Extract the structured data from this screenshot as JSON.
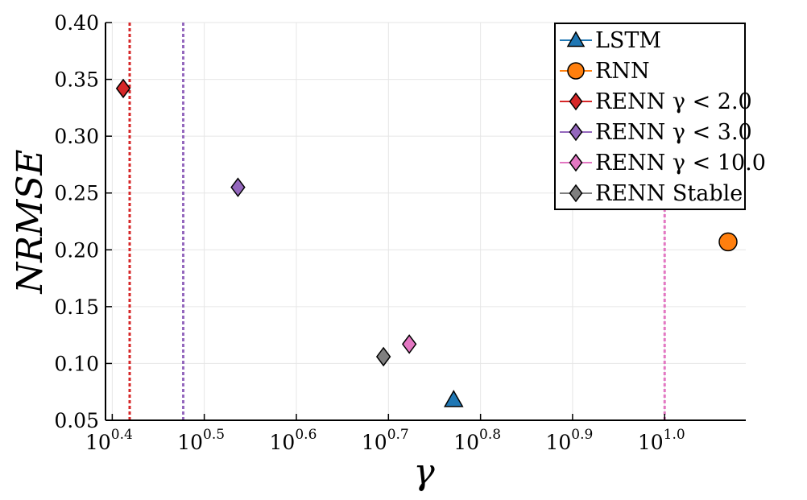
{
  "chart_data": {
    "type": "scatter",
    "title": "",
    "xlabel": "γ",
    "ylabel": "NRMSE",
    "xscale": "log10",
    "xlim": [
      2.47,
      12.25
    ],
    "ylim": [
      0.05,
      0.4
    ],
    "grid": true,
    "legend_position": "top-right",
    "xticks": [
      {
        "value": 2.512,
        "base": "10",
        "exp": "0.4"
      },
      {
        "value": 3.162,
        "base": "10",
        "exp": "0.5"
      },
      {
        "value": 3.981,
        "base": "10",
        "exp": "0.6"
      },
      {
        "value": 5.012,
        "base": "10",
        "exp": "0.7"
      },
      {
        "value": 6.31,
        "base": "10",
        "exp": "0.8"
      },
      {
        "value": 7.943,
        "base": "10",
        "exp": "0.9"
      },
      {
        "value": 10.0,
        "base": "10",
        "exp": "1.0"
      }
    ],
    "yticks": [
      "0.05",
      "0.10",
      "0.15",
      "0.20",
      "0.25",
      "0.30",
      "0.35",
      "0.40"
    ],
    "series": [
      {
        "name": "LSTM",
        "marker": "triangle",
        "color": "#1f77b4",
        "points": [
          {
            "x": 5.9,
            "y": 0.068
          }
        ]
      },
      {
        "name": "RNN",
        "marker": "circle",
        "color": "#ff7f0e",
        "points": [
          {
            "x": 11.9,
            "y": 0.207
          }
        ]
      },
      {
        "name": "RENN γ < 2.0",
        "marker": "diamond",
        "color": "#d62728",
        "points": [
          {
            "x": 2.47,
            "y": 0.342
          }
        ]
      },
      {
        "name": "RENN γ < 3.0",
        "marker": "diamond",
        "color": "#9467bd",
        "points": [
          {
            "x": 3.44,
            "y": 0.255
          }
        ]
      },
      {
        "name": "RENN γ < 10.0",
        "marker": "diamond",
        "color": "#e377c2",
        "points": [
          {
            "x": 5.28,
            "y": 0.117
          }
        ]
      },
      {
        "name": "RENN Stable",
        "marker": "diamond",
        "color": "#7f7f7f",
        "points": [
          {
            "x": 4.95,
            "y": 0.106
          }
        ]
      }
    ],
    "vlines": [
      {
        "x": 2.0,
        "color": "#d62728"
      },
      {
        "x": 3.0,
        "color": "#9467bd"
      },
      {
        "x": 10.0,
        "color": "#e377c2"
      }
    ]
  }
}
